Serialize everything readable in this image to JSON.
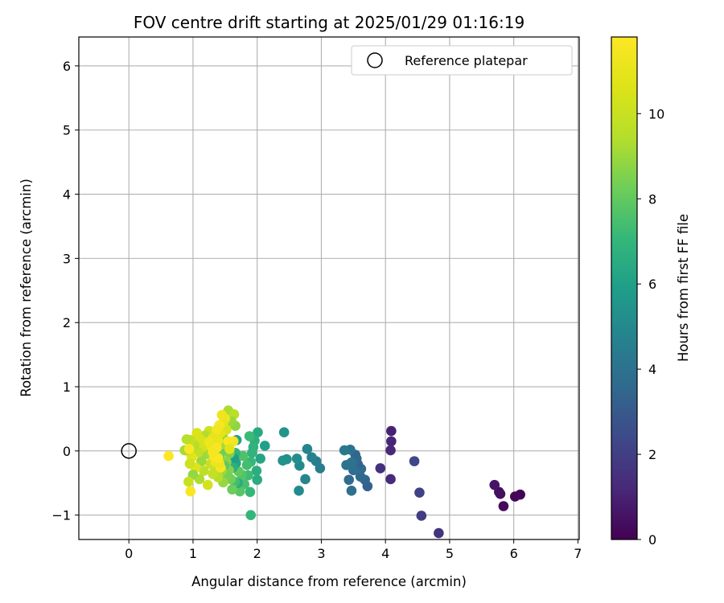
{
  "chart_data": {
    "type": "scatter",
    "title": "FOV centre drift starting at 2025/01/29 01:16:19",
    "xlabel": "Angular distance from reference (arcmin)",
    "ylabel": "Rotation from reference (arcmin)",
    "colorbar_label": "Hours from first FF file",
    "xlim": [
      -0.78,
      7.02
    ],
    "ylim": [
      -1.38,
      6.45
    ],
    "x_ticks": [
      0,
      1,
      2,
      3,
      4,
      5,
      6,
      7
    ],
    "x_tick_labels": [
      "0",
      "1",
      "2",
      "3",
      "4",
      "5",
      "6",
      "7"
    ],
    "y_ticks": [
      -1,
      0,
      1,
      2,
      3,
      4,
      5,
      6
    ],
    "y_tick_labels": [
      "−1",
      "0",
      "1",
      "2",
      "3",
      "4",
      "5",
      "6"
    ],
    "colorbar_range": [
      0,
      11.8
    ],
    "colorbar_ticks": [
      0,
      2,
      4,
      6,
      8,
      10
    ],
    "colorbar_tick_labels": [
      "0",
      "2",
      "4",
      "6",
      "8",
      "10"
    ],
    "colormap": "viridis",
    "grid": true,
    "legend": {
      "placement": "top-right",
      "entries": [
        {
          "label": "Reference platepar",
          "marker": "open-circle",
          "color": "#000000"
        }
      ]
    },
    "reference_point": {
      "x": 0,
      "y": 0
    },
    "series": [
      {
        "points": [
          [
            6.1,
            -0.68,
            0.05
          ],
          [
            6.02,
            -0.71,
            0.15
          ],
          [
            5.84,
            -0.86,
            0.25
          ],
          [
            5.77,
            -0.64,
            0.35
          ],
          [
            5.79,
            -0.67,
            0.45
          ],
          [
            5.7,
            -0.53,
            0.55
          ],
          [
            4.83,
            -1.28,
            1.6
          ],
          [
            4.56,
            -1.01,
            1.9
          ],
          [
            4.53,
            -0.65,
            2.1
          ],
          [
            4.45,
            -0.16,
            2.3
          ],
          [
            4.09,
            0.31,
            1.0
          ],
          [
            4.09,
            0.15,
            1.1
          ],
          [
            4.08,
            0.01,
            1.2
          ],
          [
            4.08,
            -0.44,
            1.3
          ],
          [
            3.92,
            -0.27,
            1.5
          ],
          [
            3.72,
            -0.55,
            3.3
          ],
          [
            3.68,
            -0.45,
            3.5
          ],
          [
            3.61,
            -0.4,
            3.6
          ],
          [
            3.62,
            -0.28,
            3.7
          ],
          [
            3.57,
            -0.21,
            3.4
          ],
          [
            3.55,
            -0.12,
            3.6
          ],
          [
            3.53,
            -0.06,
            3.5
          ],
          [
            3.5,
            -0.3,
            3.8
          ],
          [
            3.47,
            -0.62,
            3.9
          ],
          [
            3.45,
            0.02,
            4.0
          ],
          [
            3.43,
            -0.45,
            3.7
          ],
          [
            3.39,
            -0.22,
            4.1
          ],
          [
            3.36,
            0.01,
            4.2
          ],
          [
            3.47,
            -0.18,
            4.0
          ],
          [
            2.98,
            -0.27,
            4.5
          ],
          [
            2.92,
            -0.16,
            4.6
          ],
          [
            2.85,
            -0.1,
            4.7
          ],
          [
            2.78,
            0.03,
            4.8
          ],
          [
            2.75,
            -0.44,
            4.9
          ],
          [
            2.66,
            -0.23,
            5.0
          ],
          [
            2.65,
            -0.62,
            5.1
          ],
          [
            2.62,
            -0.12,
            5.2
          ],
          [
            2.46,
            -0.13,
            5.3
          ],
          [
            2.4,
            -0.15,
            5.4
          ],
          [
            2.42,
            0.29,
            5.5
          ],
          [
            2.12,
            0.08,
            6.0
          ],
          [
            2.05,
            -0.12,
            6.2
          ],
          [
            2.01,
            0.29,
            6.4
          ],
          [
            2.0,
            -0.45,
            6.5
          ],
          [
            1.99,
            -0.31,
            6.6
          ],
          [
            1.96,
            0.16,
            6.7
          ],
          [
            1.94,
            0.06,
            6.8
          ],
          [
            1.92,
            -0.03,
            6.9
          ],
          [
            1.9,
            -0.17,
            7.0
          ],
          [
            1.89,
            -0.64,
            7.1
          ],
          [
            1.88,
            0.23,
            7.2
          ],
          [
            1.86,
            -0.38,
            7.3
          ],
          [
            1.84,
            -0.22,
            7.4
          ],
          [
            1.8,
            -0.52,
            7.5
          ],
          [
            1.78,
            -0.08,
            7.6
          ],
          [
            1.76,
            -0.37,
            7.7
          ],
          [
            1.73,
            -0.63,
            7.8
          ],
          [
            1.71,
            -0.32,
            8.0
          ],
          [
            1.7,
            -0.5,
            6.6
          ],
          [
            1.68,
            0.17,
            6.1
          ],
          [
            1.67,
            -0.19,
            6.3
          ],
          [
            1.66,
            -0.03,
            6.9
          ],
          [
            1.65,
            -0.48,
            7.4
          ],
          [
            1.64,
            -0.12,
            5.9
          ],
          [
            1.62,
            -0.26,
            6.7
          ],
          [
            1.9,
            -1.0,
            7.0
          ],
          [
            1.61,
            -0.6,
            8.2
          ],
          [
            1.59,
            -0.44,
            8.3
          ],
          [
            1.57,
            -0.04,
            8.5
          ],
          [
            1.56,
            -0.3,
            8.6
          ],
          [
            1.55,
            0.63,
            9.3
          ],
          [
            1.54,
            -0.39,
            8.4
          ],
          [
            1.52,
            -0.17,
            8.8
          ],
          [
            1.5,
            0.04,
            8.1
          ],
          [
            1.49,
            -0.23,
            7.9
          ],
          [
            1.48,
            0.19,
            8.7
          ],
          [
            1.47,
            -0.49,
            8.9
          ],
          [
            1.45,
            -0.31,
            9.0
          ],
          [
            1.44,
            0.1,
            9.2
          ],
          [
            1.42,
            -0.07,
            8.3
          ],
          [
            1.4,
            0.27,
            9.4
          ],
          [
            1.39,
            -0.41,
            9.5
          ],
          [
            1.38,
            -0.13,
            9.6
          ],
          [
            1.36,
            0.21,
            9.7
          ],
          [
            1.34,
            -0.28,
            9.8
          ],
          [
            1.32,
            0.02,
            8.6
          ],
          [
            1.31,
            -0.36,
            9.9
          ],
          [
            1.29,
            0.12,
            10.0
          ],
          [
            1.27,
            -0.2,
            10.1
          ],
          [
            1.25,
            0.31,
            10.2
          ],
          [
            1.23,
            -0.53,
            10.3
          ],
          [
            1.21,
            -0.05,
            9.1
          ],
          [
            1.19,
            0.24,
            9.4
          ],
          [
            1.17,
            -0.31,
            9.7
          ],
          [
            1.15,
            0.06,
            10.4
          ],
          [
            1.13,
            -0.16,
            9.0
          ],
          [
            1.11,
            0.19,
            10.5
          ],
          [
            1.1,
            -0.44,
            9.3
          ],
          [
            1.08,
            -0.02,
            9.8
          ],
          [
            1.06,
            0.28,
            10.6
          ],
          [
            1.04,
            -0.26,
            10.7
          ],
          [
            1.02,
            0.09,
            9.5
          ],
          [
            1.0,
            -0.37,
            8.9
          ],
          [
            0.98,
            -0.1,
            10.8
          ],
          [
            0.96,
            0.17,
            9.9
          ],
          [
            0.95,
            -0.2,
            10.2
          ],
          [
            0.93,
            -0.48,
            10.0
          ],
          [
            0.92,
            0.0,
            10.4
          ],
          [
            0.9,
            0.18,
            9.6
          ],
          [
            0.87,
            0.01,
            9.2
          ],
          [
            1.66,
            0.39,
            8.8
          ],
          [
            1.64,
            0.57,
            9.6
          ],
          [
            1.6,
            0.46,
            9.0
          ],
          [
            1.58,
            0.14,
            10.0
          ],
          [
            1.52,
            0.33,
            10.4
          ],
          [
            1.5,
            0.5,
            11.2
          ],
          [
            1.47,
            0.44,
            11.0
          ],
          [
            1.45,
            0.56,
            11.3
          ],
          [
            1.43,
            0.28,
            10.9
          ],
          [
            1.41,
            0.4,
            11.5
          ],
          [
            1.39,
            0.16,
            11.1
          ],
          [
            1.37,
            0.33,
            11.4
          ],
          [
            1.35,
            -0.17,
            11.2
          ],
          [
            1.33,
            -0.08,
            11.6
          ],
          [
            1.31,
            0.2,
            11.0
          ],
          [
            1.29,
            0.06,
            11.3
          ],
          [
            1.43,
            -0.26,
            11.5
          ],
          [
            1.41,
            -0.19,
            11.1
          ],
          [
            1.39,
            -0.11,
            11.7
          ],
          [
            1.37,
            0.05,
            11.6
          ],
          [
            1.63,
            0.15,
            11.4
          ],
          [
            1.55,
            0.15,
            11.6
          ],
          [
            1.57,
            0.03,
            10.8
          ],
          [
            1.31,
            -0.02,
            11.5
          ],
          [
            0.96,
            -0.63,
            11.6
          ],
          [
            0.94,
            0.03,
            11.7
          ],
          [
            0.62,
            -0.08,
            11.8
          ],
          [
            1.25,
            0.14,
            11.2
          ]
        ]
      }
    ]
  }
}
